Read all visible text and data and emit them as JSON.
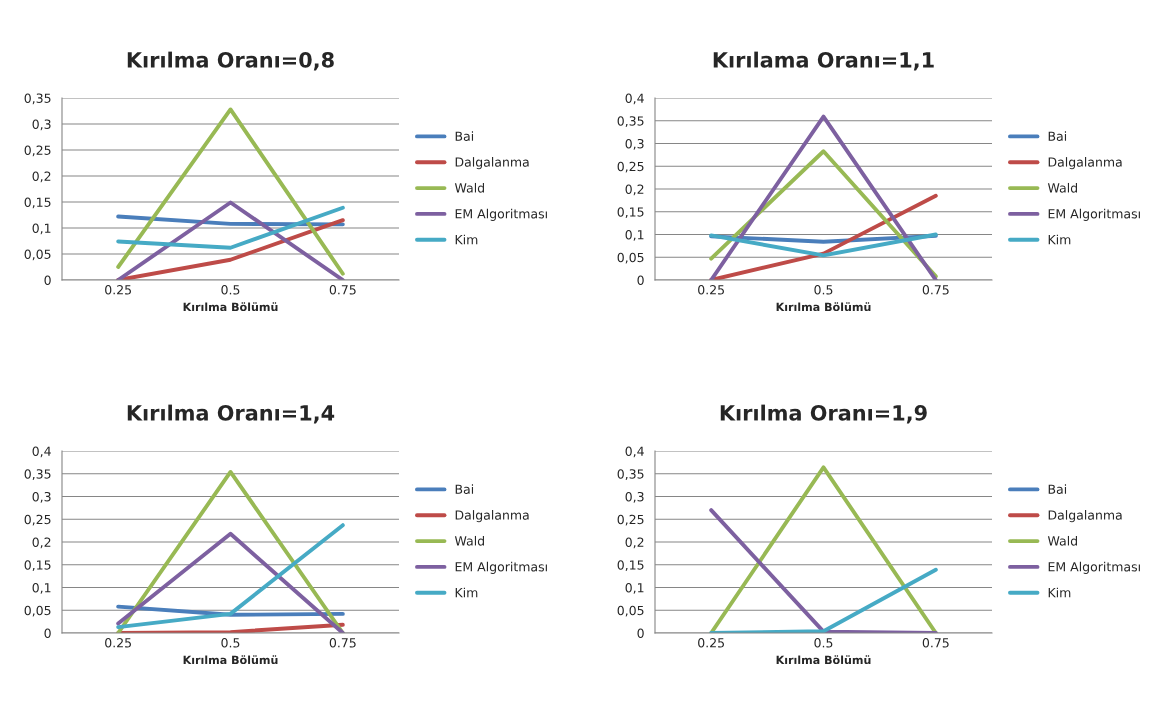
{
  "chart_data": [
    {
      "type": "line",
      "title": "Kırılma Oranı=0,8",
      "xlabel": "Kırılma Bölümü",
      "categories": [
        "0.25",
        "0.5",
        "0.75"
      ],
      "ylim": [
        0,
        0.35
      ],
      "yticks": [
        0,
        {
          "value": 0.05,
          "label": "0,05"
        },
        {
          "value": 0.1,
          "label": "0,1"
        },
        {
          "value": 0.15,
          "label": "0,15"
        },
        {
          "value": 0.2,
          "label": "0,2"
        },
        {
          "value": 0.25,
          "label": "0,25"
        },
        {
          "value": 0.3,
          "label": "0,3"
        },
        {
          "value": 0.35,
          "label": "0,35"
        }
      ],
      "grid": "y",
      "legend": "right",
      "marker": "none",
      "line_style": "solid",
      "series": [
        {
          "name": "Bai",
          "color": "#4a7ebb",
          "values": [
            0.122,
            0.108,
            0.107
          ]
        },
        {
          "name": "Dalgalanma",
          "color": "#be4b48",
          "values": [
            0,
            0.039,
            0.115
          ]
        },
        {
          "name": "Wald",
          "color": "#98b954",
          "values": [
            0.025,
            0.328,
            0.012
          ]
        },
        {
          "name": "EM Algoritması",
          "color": "#7d60a0",
          "values": [
            0,
            0.149,
            0
          ]
        },
        {
          "name": "Kim",
          "color": "#46aac5",
          "values": [
            0.074,
            0.062,
            0.139
          ]
        }
      ]
    },
    {
      "type": "line",
      "title": "Kırılama Oranı=1,1",
      "xlabel": "Kırılma Bölümü",
      "categories": [
        "0.25",
        "0.5",
        "0.75"
      ],
      "ylim": [
        0,
        0.4
      ],
      "yticks": [
        0,
        {
          "value": 0.05,
          "label": "0,05"
        },
        {
          "value": 0.1,
          "label": "0,1"
        },
        {
          "value": 0.15,
          "label": "0,15"
        },
        {
          "value": 0.2,
          "label": "0,2"
        },
        {
          "value": 0.25,
          "label": "0,25"
        },
        {
          "value": 0.3,
          "label": "0,3"
        },
        {
          "value": 0.35,
          "label": "0,35"
        },
        {
          "value": 0.4,
          "label": "0,4"
        }
      ],
      "grid": "y",
      "legend": "right",
      "marker": "none",
      "line_style": "solid",
      "series": [
        {
          "name": "Bai",
          "color": "#4a7ebb",
          "values": [
            0.096,
            0.084,
            0.097
          ]
        },
        {
          "name": "Dalgalanma",
          "color": "#be4b48",
          "values": [
            0,
            0.058,
            0.185
          ]
        },
        {
          "name": "Wald",
          "color": "#98b954",
          "values": [
            0.047,
            0.283,
            0.008
          ]
        },
        {
          "name": "EM Algoritması",
          "color": "#7d60a0",
          "values": [
            0,
            0.359,
            0
          ]
        },
        {
          "name": "Kim",
          "color": "#46aac5",
          "values": [
            0.098,
            0.054,
            0.1
          ]
        }
      ]
    },
    {
      "type": "line",
      "title": "Kırılma Oranı=1,4",
      "xlabel": "Kırılma Bölümü",
      "categories": [
        "0.25",
        "0.5",
        "0.75"
      ],
      "ylim": [
        0,
        0.4
      ],
      "yticks": [
        0,
        {
          "value": 0.05,
          "label": "0,05"
        },
        {
          "value": 0.1,
          "label": "0,1"
        },
        {
          "value": 0.15,
          "label": "0,15"
        },
        {
          "value": 0.2,
          "label": "0,2"
        },
        {
          "value": 0.25,
          "label": "0,25"
        },
        {
          "value": 0.3,
          "label": "0,3"
        },
        {
          "value": 0.35,
          "label": "0,35"
        },
        {
          "value": 0.4,
          "label": "0,4"
        }
      ],
      "grid": "y",
      "legend": "right",
      "marker": "none",
      "line_style": "solid",
      "series": [
        {
          "name": "Bai",
          "color": "#4a7ebb",
          "values": [
            0.058,
            0.04,
            0.042
          ]
        },
        {
          "name": "Dalgalanma",
          "color": "#be4b48",
          "values": [
            0,
            0.002,
            0.018
          ]
        },
        {
          "name": "Wald",
          "color": "#98b954",
          "values": [
            0,
            0.354,
            0
          ]
        },
        {
          "name": "EM Algoritması",
          "color": "#7d60a0",
          "values": [
            0.021,
            0.218,
            0
          ]
        },
        {
          "name": "Kim",
          "color": "#46aac5",
          "values": [
            0.013,
            0.042,
            0.237
          ]
        }
      ]
    },
    {
      "type": "line",
      "title": "Kırılma Oranı=1,9",
      "xlabel": "Kırılma Bölümü",
      "categories": [
        "0.25",
        "0.5",
        "0.75"
      ],
      "ylim": [
        0,
        0.4
      ],
      "yticks": [
        0,
        {
          "value": 0.05,
          "label": "0,05"
        },
        {
          "value": 0.1,
          "label": "0,1"
        },
        {
          "value": 0.15,
          "label": "0,15"
        },
        {
          "value": 0.2,
          "label": "0,2"
        },
        {
          "value": 0.25,
          "label": "0,25"
        },
        {
          "value": 0.3,
          "label": "0,3"
        },
        {
          "value": 0.35,
          "label": "0,35"
        },
        {
          "value": 0.4,
          "label": "0,4"
        }
      ],
      "grid": "y",
      "legend": "right",
      "marker": "none",
      "line_style": "solid",
      "series": [
        {
          "name": "Bai",
          "color": "#4a7ebb",
          "values": [
            null,
            null,
            null
          ]
        },
        {
          "name": "Dalgalanma",
          "color": "#be4b48",
          "values": [
            null,
            null,
            null
          ]
        },
        {
          "name": "Wald",
          "color": "#98b954",
          "values": [
            0,
            0.364,
            0
          ]
        },
        {
          "name": "EM Algoritması",
          "color": "#7d60a0",
          "values": [
            0.27,
            0.003,
            0
          ]
        },
        {
          "name": "Kim",
          "color": "#46aac5",
          "values": [
            0,
            0.004,
            0.139
          ]
        }
      ]
    }
  ]
}
